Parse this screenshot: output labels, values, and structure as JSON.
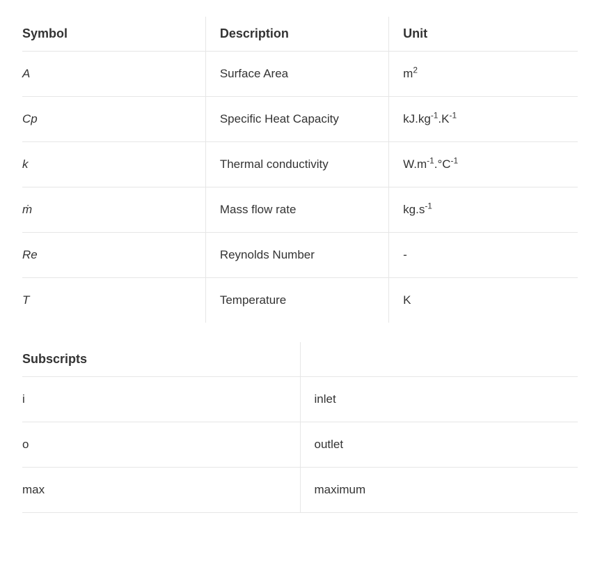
{
  "nomenclature": {
    "header": {
      "symbol": "Symbol",
      "description": "Description",
      "unit": "Unit"
    },
    "rows": [
      {
        "symbol_html": "<span class=\"italic\">A</span>",
        "description": "Surface Area",
        "unit_html": "m<sup>2</sup>"
      },
      {
        "symbol_html": "<span class=\"italic\">Cp</span>",
        "description": "Specific Heat Capacity",
        "unit_html": "kJ.kg<sup>-1</sup>.K<sup>-1</sup>"
      },
      {
        "symbol_html": "<span class=\"italic\">k</span>",
        "description": "Thermal conductivity",
        "unit_html": "W.m<sup>-1</sup>.°C<sup>-1</sup>"
      },
      {
        "symbol_html": "<span class=\"italic\">ṁ</span>",
        "description": "Mass flow rate",
        "unit_html": "kg.s<sup>-1</sup>"
      },
      {
        "symbol_html": "<span class=\"italic\">Re</span>",
        "description": "Reynolds Number",
        "unit_html": "-"
      },
      {
        "symbol_html": "<span class=\"italic\">T</span>",
        "description": "Temperature",
        "unit_html": "K"
      }
    ]
  },
  "subscripts": {
    "header": {
      "title": "Subscripts",
      "blank": ""
    },
    "rows": [
      {
        "sub": "i",
        "meaning": "inlet"
      },
      {
        "sub": "o",
        "meaning": "outlet"
      },
      {
        "sub": "max",
        "meaning": "maximum"
      }
    ]
  }
}
